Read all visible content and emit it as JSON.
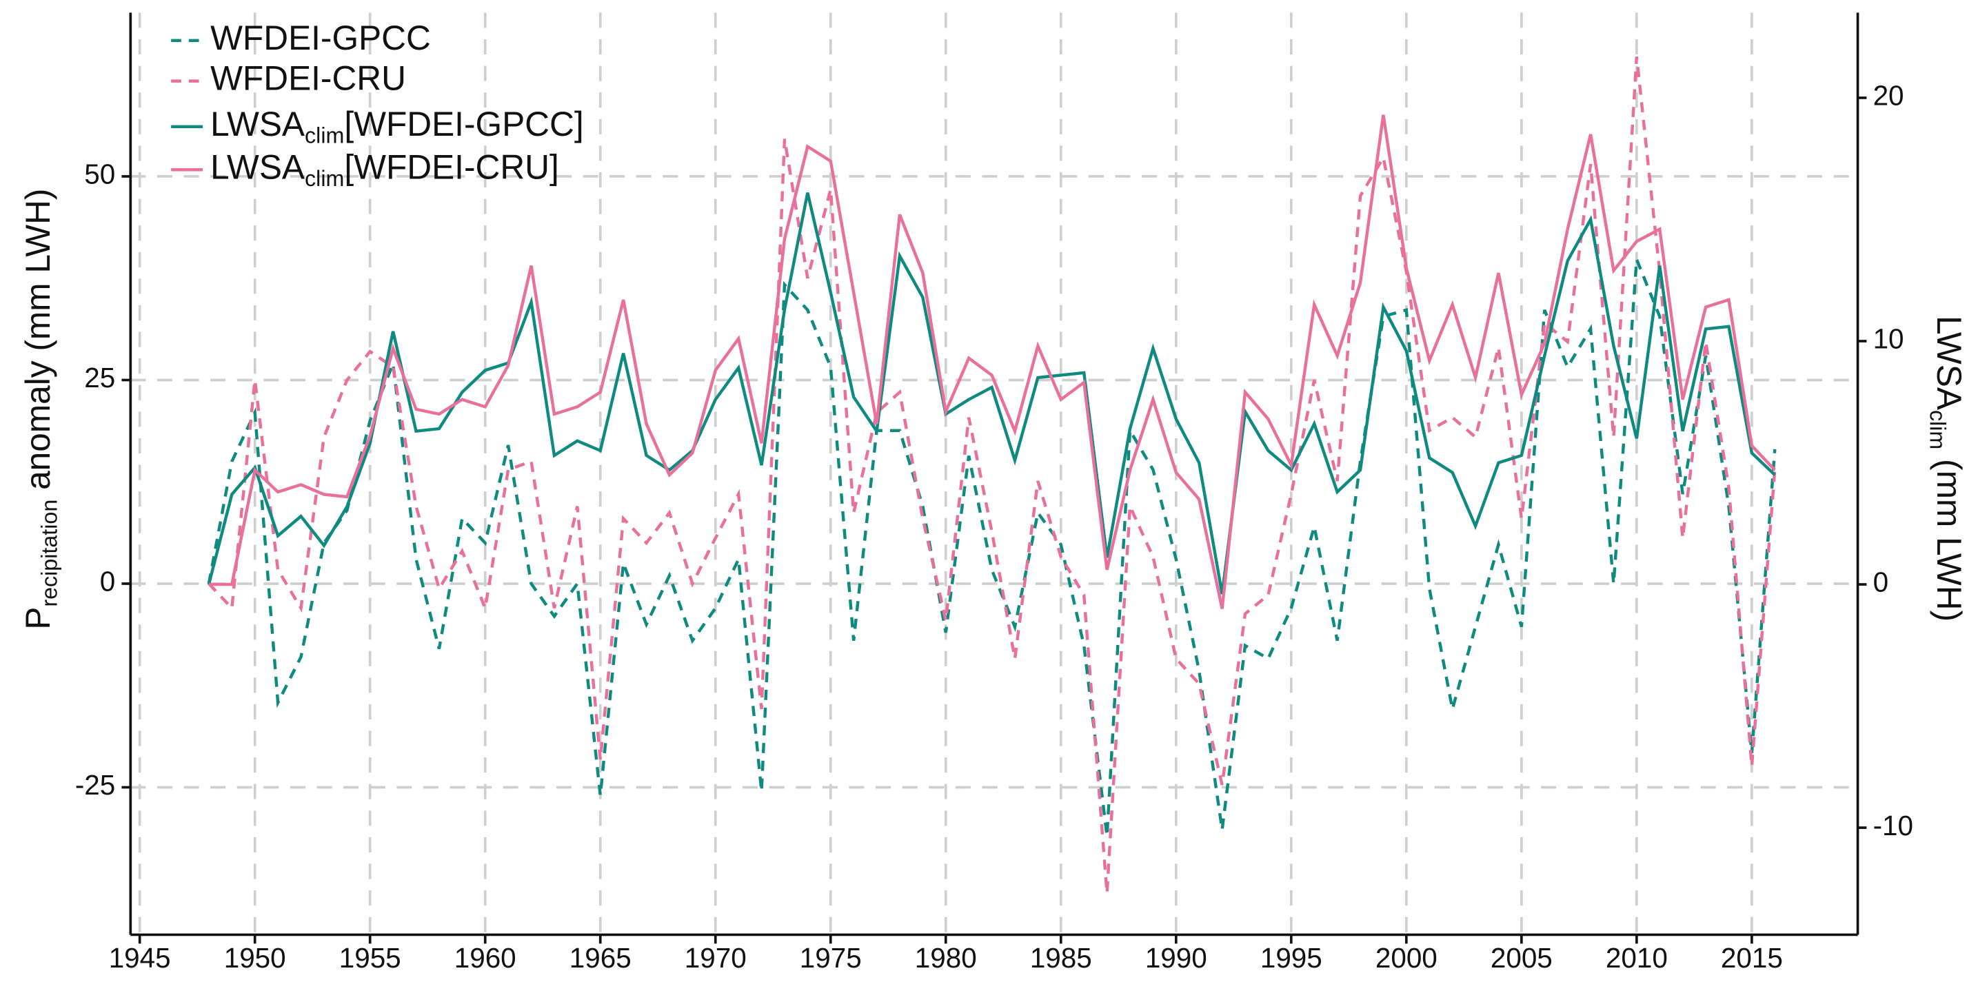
{
  "chart_data": {
    "type": "line",
    "ylabel": "Precipitation anomaly (mm LWH)",
    "y2label": "LWSAclim (mm LWH)",
    "x": [
      1948,
      1949,
      1950,
      1951,
      1952,
      1953,
      1954,
      1955,
      1956,
      1957,
      1958,
      1959,
      1960,
      1961,
      1962,
      1963,
      1964,
      1965,
      1966,
      1967,
      1968,
      1969,
      1970,
      1971,
      1972,
      1973,
      1974,
      1975,
      1976,
      1977,
      1978,
      1979,
      1980,
      1981,
      1982,
      1983,
      1984,
      1985,
      1986,
      1987,
      1988,
      1989,
      1990,
      1991,
      1992,
      1993,
      1994,
      1995,
      1996,
      1997,
      1998,
      1999,
      2000,
      2001,
      2002,
      2003,
      2004,
      2005,
      2006,
      2007,
      2008,
      2009,
      2010,
      2011,
      2012,
      2013,
      2014,
      2015,
      2016
    ],
    "xlim": [
      1944.6,
      2019.6
    ],
    "xticks": [
      1945,
      1950,
      1955,
      1960,
      1965,
      1970,
      1975,
      1980,
      1985,
      1990,
      1995,
      2000,
      2005,
      2010,
      2015
    ],
    "ylim": [
      -43.1,
      70.1
    ],
    "yticks": [
      -25,
      0,
      25,
      50
    ],
    "y2lim": [
      -14.4,
      23.5
    ],
    "y2ticks": [
      -10,
      0,
      10,
      20
    ],
    "grid": true,
    "legend": "upper left",
    "series": [
      {
        "name": "WFDEI-GPCC",
        "color": "#0f8a80",
        "dash": true,
        "values": [
          0,
          15,
          21,
          -14.6,
          -9,
          5,
          9,
          20,
          27,
          3,
          -8,
          8,
          5,
          17,
          0,
          -4,
          0,
          -26,
          2.5,
          -5,
          1,
          -7,
          -3,
          3,
          -25.5,
          36.7,
          33.6,
          26.6,
          -7,
          18.8,
          18.8,
          9.5,
          -6,
          15.7,
          1.7,
          -5.3,
          8.7,
          4.8,
          -7.6,
          -31,
          18.8,
          14,
          3,
          -10.7,
          -30.2,
          -7.6,
          -9.2,
          -3,
          7,
          -7,
          15,
          32.8,
          33.6,
          -0.6,
          -15.4,
          -5.3,
          4.8,
          -5.3,
          33.6,
          26.6,
          31.3,
          0,
          39.8,
          32.8,
          11,
          28,
          9.5,
          -20.8,
          16.5
        ]
      },
      {
        "name": "WFDEI-CRU",
        "color": "#e8709a",
        "dash": true,
        "values": [
          0,
          -3,
          25,
          1.7,
          -3,
          18,
          25,
          28.5,
          26.6,
          9.5,
          -0.6,
          4,
          -3,
          14,
          15,
          -3,
          9.5,
          -21.6,
          8,
          5,
          8.7,
          0,
          5.6,
          11,
          -15.4,
          54.6,
          37.5,
          48.4,
          8.7,
          21,
          23.5,
          8,
          -4.5,
          20.4,
          6.4,
          -9.2,
          12.6,
          3.3,
          -1.4,
          -38,
          9.5,
          3.3,
          -9.2,
          -12.3,
          -24.7,
          -3.7,
          -1.4,
          11,
          25,
          12.6,
          47.6,
          52.3,
          38.3,
          18.8,
          20.4,
          18,
          29,
          8,
          32,
          29.7,
          51.5,
          18,
          64.7,
          38.3,
          5.6,
          29.7,
          11.8,
          -22.4,
          14
        ]
      },
      {
        "name": "LWSAclim[WFDEI-GPCC]",
        "color": "#0f8a80",
        "axis": "y2",
        "values": [
          0,
          3.7,
          4.8,
          2,
          2.8,
          1.6,
          3.2,
          5.8,
          10.4,
          6.3,
          6.4,
          7.9,
          8.8,
          9.1,
          11.6,
          5.3,
          5.9,
          5.5,
          9.5,
          5.3,
          4.7,
          5.5,
          7.6,
          8.9,
          4.9,
          11.3,
          16.1,
          12,
          7.7,
          6.3,
          13.5,
          11.8,
          7,
          7.6,
          8.1,
          5.1,
          8.5,
          8.6,
          8.7,
          1.1,
          6.4,
          9.7,
          6.8,
          5,
          -0.4,
          7.1,
          5.5,
          4.7,
          6.6,
          3.8,
          4.7,
          11.4,
          9.6,
          5.2,
          4.6,
          2.4,
          5,
          5.3,
          9.4,
          13.3,
          15,
          9.8,
          6,
          13.1,
          6.3,
          10.5,
          10.6,
          5.4,
          4.5
        ]
      },
      {
        "name": "LWSAclim[WFDEI-CRU]",
        "color": "#e8709a",
        "axis": "y2",
        "values": [
          0,
          0,
          4.7,
          3.8,
          4.1,
          3.7,
          3.6,
          6.1,
          9.7,
          7.2,
          7,
          7.6,
          7.3,
          9,
          13.1,
          7,
          7.3,
          7.9,
          11.7,
          6.6,
          4.5,
          5.4,
          8.8,
          10.1,
          5.8,
          14.2,
          18,
          17.4,
          12,
          6.6,
          15.2,
          12.8,
          7.1,
          9.3,
          8.6,
          6.3,
          9.8,
          7.6,
          8.3,
          0.6,
          4.7,
          7.6,
          4.6,
          3.5,
          -1,
          7.9,
          6.8,
          4.9,
          11.5,
          9.4,
          12.4,
          19.3,
          13,
          9.2,
          11.5,
          8.5,
          12.8,
          7.8,
          9.9,
          14.6,
          18.5,
          12.9,
          14.1,
          14.6,
          7.6,
          11.4,
          11.7,
          5.7,
          4.7
        ]
      }
    ]
  }
}
